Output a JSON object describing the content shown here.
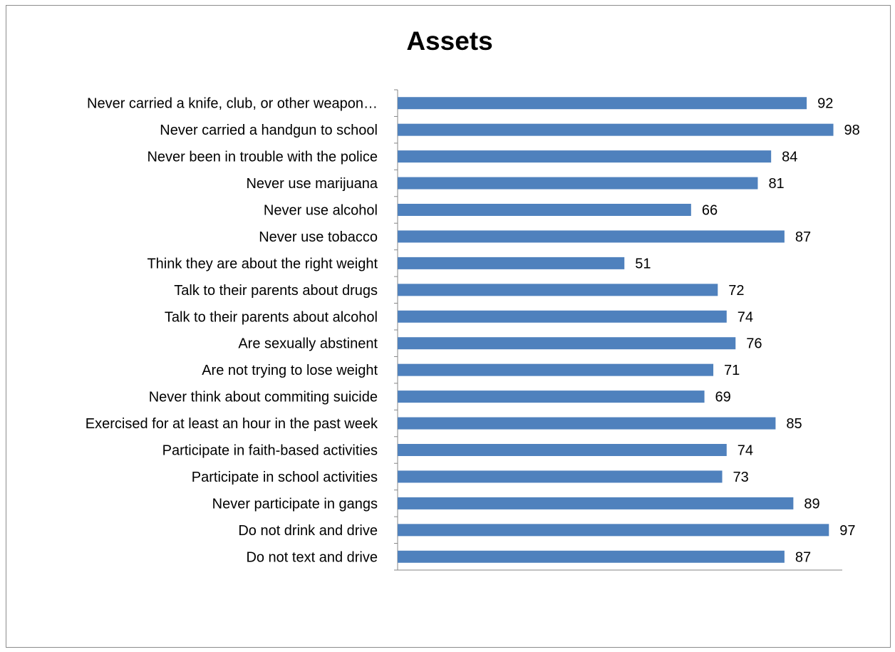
{
  "chart_data": {
    "type": "bar",
    "orientation": "horizontal",
    "title": "Assets",
    "xlabel": "",
    "ylabel": "",
    "xlim": [
      0,
      100
    ],
    "grid": false,
    "legend": "none",
    "bar_color": "#4f81bd",
    "categories": [
      "Never carried a knife, club, or other weapon…",
      "Never carried a handgun to school",
      "Never been in trouble with the police",
      "Never use marijuana",
      "Never use alcohol",
      "Never use tobacco",
      "Think they are about the right weight",
      "Talk to their parents about drugs",
      "Talk to their parents about alcohol",
      "Are sexually abstinent",
      "Are not trying to lose weight",
      "Never think about commiting suicide",
      "Exercised for at least an hour in the past week",
      "Participate in faith-based activities",
      "Participate in school activities",
      "Never participate in gangs",
      "Do not drink and drive",
      "Do not text and drive"
    ],
    "values": [
      92,
      98,
      84,
      81,
      66,
      87,
      51,
      72,
      74,
      76,
      71,
      69,
      85,
      74,
      73,
      89,
      97,
      87
    ]
  }
}
